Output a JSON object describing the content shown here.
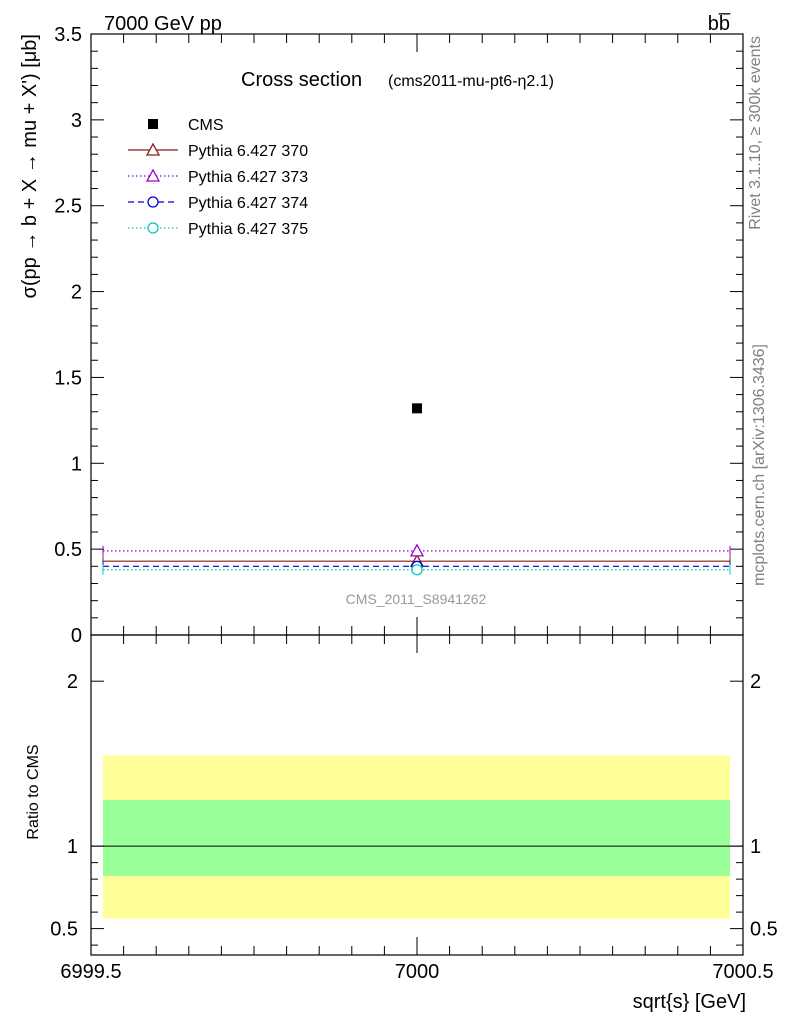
{
  "header": {
    "left": "7000 GeV pp",
    "right": "bb̅"
  },
  "side_labels": {
    "rivet": "Rivet 3.1.10, ≥ 300k events",
    "mcplots": "mcplots.cern.ch [arXiv:1306.3436]"
  },
  "chart_data": [
    {
      "type": "scatter",
      "title": "Cross section",
      "subtitle": "(cms2011-mu-pt6-η2.1)",
      "xlabel": "sqrt{s} [GeV]",
      "ylabel": "σ(pp → b + X → mu + X') [μb]",
      "xlim": [
        6999.5,
        7000.5
      ],
      "ylim": [
        0,
        3.5
      ],
      "yticks": [
        0,
        0.5,
        1,
        1.5,
        2,
        2.5,
        3,
        3.5
      ],
      "ytick_labels": [
        "0",
        "0.5",
        "1",
        "1.5",
        "2",
        "2.5",
        "3",
        "3.5"
      ],
      "watermark": "CMS_2011_S8941262",
      "legend_position": "top-left",
      "series": [
        {
          "name": "CMS",
          "x": [
            7000
          ],
          "y": [
            1.32
          ],
          "marker": "square",
          "color": "#000000",
          "style": "marker"
        },
        {
          "name": "Pythia 6.427 370",
          "x": [
            7000
          ],
          "y": [
            0.43
          ],
          "marker": "triangle",
          "color": "#8b1a1a",
          "style": "solid"
        },
        {
          "name": "Pythia 6.427 373",
          "x": [
            7000
          ],
          "y": [
            0.49
          ],
          "marker": "triangle",
          "color": "#9400d3",
          "style": "dotted"
        },
        {
          "name": "Pythia 6.427 374",
          "x": [
            7000
          ],
          "y": [
            0.4
          ],
          "marker": "circle",
          "color": "#0000dd",
          "style": "dashed"
        },
        {
          "name": "Pythia 6.427 375",
          "x": [
            7000
          ],
          "y": [
            0.38
          ],
          "marker": "circle",
          "color": "#00ccbb",
          "style": "dotted"
        }
      ]
    },
    {
      "type": "line",
      "ylabel": "Ratio to CMS",
      "xlabel": "sqrt{s} [GeV]",
      "xlim": [
        6999.5,
        7000.5
      ],
      "ylim": [
        0.34,
        2.28
      ],
      "yticks": [
        0.5,
        1,
        2
      ],
      "ytick_labels": [
        "0.5",
        "1",
        "2"
      ],
      "xticks": [
        6999.5,
        7000,
        7000.5
      ],
      "xtick_labels": [
        "6999.5",
        "7000",
        "7000.5"
      ],
      "reference": 1,
      "bands": [
        {
          "name": "outer",
          "low": 0.56,
          "high": 1.55,
          "color": "#ffff99"
        },
        {
          "name": "inner",
          "low": 0.82,
          "high": 1.28,
          "color": "#99ff99"
        }
      ]
    }
  ]
}
